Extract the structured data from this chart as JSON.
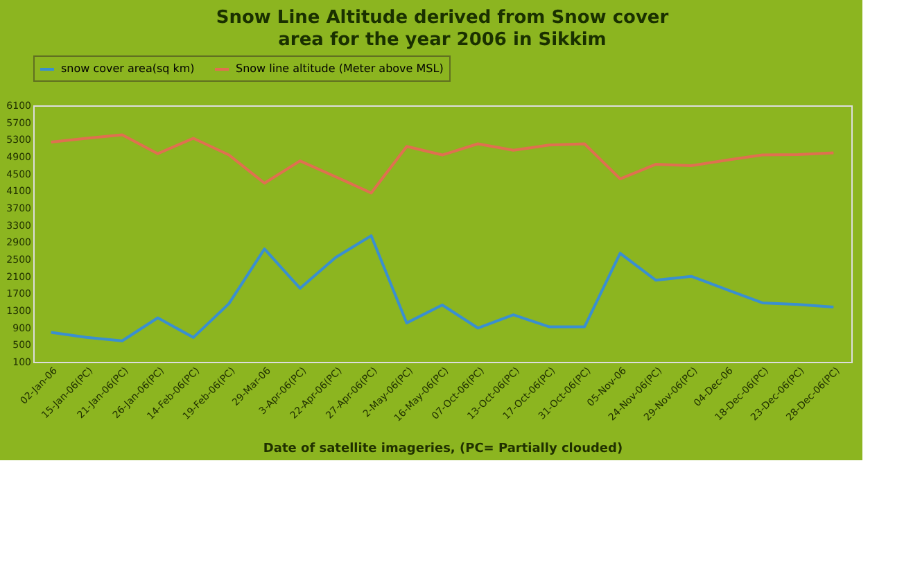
{
  "chart_data": {
    "type": "line",
    "title": "Snow Line Altitude derived from Snow cover area for the year 2006 in Sikkim",
    "xlabel": "Date of satellite imageries, (PC= Partially clouded)",
    "categories": [
      "02-Jan-06",
      "15-Jan-06(PC)",
      "21-Jan-06(PC)",
      "26-Jan-06(PC)",
      "14-Feb-06(PC)",
      "19-Feb-06(PC)",
      "29-Mar-06",
      "3-Apr-06(PC)",
      "22-Apr-06(PC)",
      "27-Apr-06(PC)",
      "2-May-06(PC)",
      "16-May-06(PC)",
      "07-Oct-06(PC)",
      "13-Oct-06(PC)",
      "17-Oct-06(PC)",
      "31-Oct-06(PC)",
      "05-Nov-06",
      "24-Nov-06(PC)",
      "29-Nov-06(PC)",
      "04-Dec-06",
      "18-Dec-06(PC)",
      "23-Dec-06(PC)",
      "28-Dec-06(PC)"
    ],
    "series": [
      {
        "name": "snow cover area(sq km)",
        "color": "#3a8fd0",
        "values": [
          790,
          670,
          590,
          1130,
          670,
          1460,
          2740,
          1820,
          2540,
          3050,
          1010,
          1430,
          890,
          1200,
          920,
          920,
          2640,
          2010,
          2100,
          1790,
          1480,
          1440,
          1380
        ]
      },
      {
        "name": "Snow line altitude (Meter above MSL)",
        "color": "#e07050",
        "values": [
          5240,
          5330,
          5410,
          4970,
          5330,
          4940,
          4280,
          4800,
          4430,
          4050,
          5140,
          4940,
          5200,
          5050,
          5170,
          5200,
          4380,
          4720,
          4690,
          4820,
          4940,
          4950,
          4990
        ]
      }
    ],
    "ylim": [
      100,
      6100
    ],
    "yticks": [
      100,
      500,
      900,
      1300,
      1700,
      2100,
      2500,
      2900,
      3300,
      3700,
      4100,
      4500,
      4900,
      5300,
      5700,
      6100
    ],
    "grid": false,
    "legend": "top",
    "marker": "none",
    "line_style": "solid"
  }
}
